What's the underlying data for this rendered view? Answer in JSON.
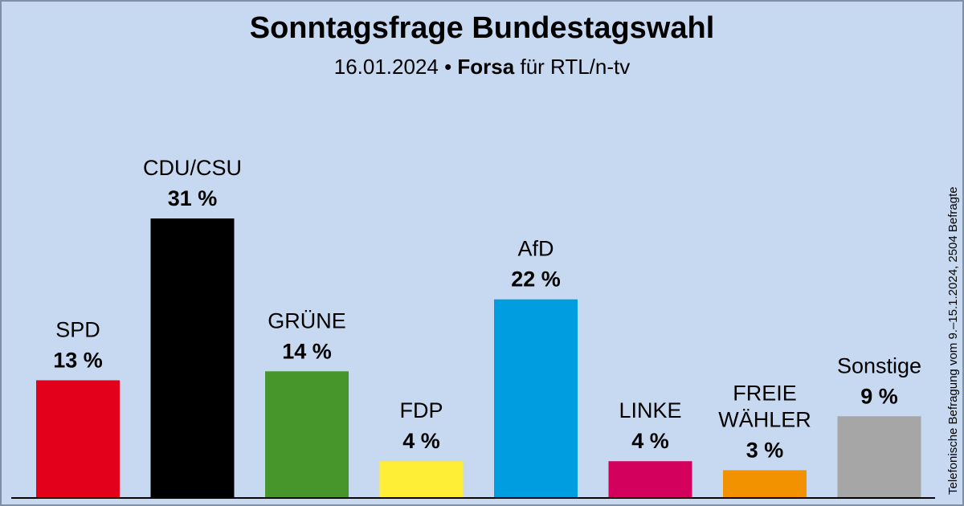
{
  "header": {
    "title": "Sonntagsfrage Bundestagswahl",
    "subtitle_date": "16.01.2024 •",
    "subtitle_institute": "Forsa",
    "subtitle_client": "für RTL/n-tv"
  },
  "source_note": "Telefonische Befragung vom 9.–15.1.2024, 2504 Befragte",
  "chart_data": {
    "type": "bar",
    "categories": [
      "SPD",
      "CDU/CSU",
      "GRÜNE",
      "FDP",
      "AfD",
      "LINKE",
      "FREIE WÄHLER",
      "Sonstige"
    ],
    "category_lines": [
      [
        "SPD"
      ],
      [
        "CDU/CSU"
      ],
      [
        "GRÜNE"
      ],
      [
        "FDP"
      ],
      [
        "AfD"
      ],
      [
        "LINKE"
      ],
      [
        "FREIE",
        "WÄHLER"
      ],
      [
        "Sonstige"
      ]
    ],
    "values": [
      13,
      31,
      14,
      4,
      22,
      4,
      3,
      9
    ],
    "value_labels": [
      "13 %",
      "31 %",
      "14 %",
      "4 %",
      "22 %",
      "4 %",
      "3 %",
      "9 %"
    ],
    "colors": [
      "#e3001b",
      "#000000",
      "#46962b",
      "#ffed36",
      "#009ee0",
      "#d4005d",
      "#f39200",
      "#a6a6a6"
    ],
    "unit": "%",
    "ylim": [
      0,
      35
    ],
    "grid": false,
    "legend": "none"
  }
}
